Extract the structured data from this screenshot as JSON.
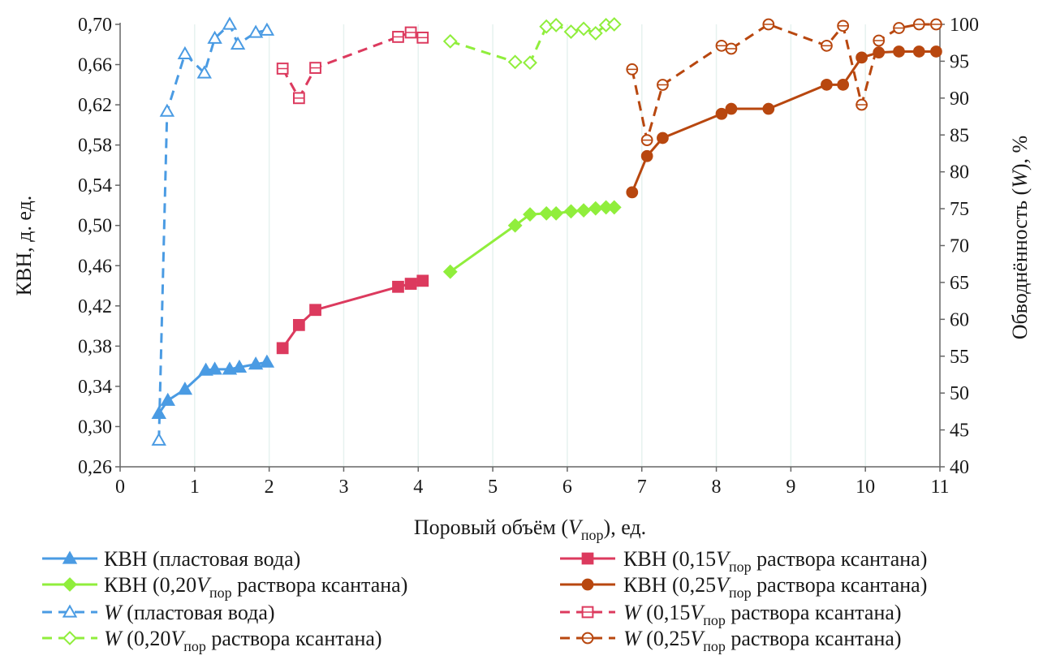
{
  "chart_data": {
    "type": "line",
    "title": "",
    "x_axis": {
      "label_parts": [
        "Поровый объём (",
        "V",
        "пор",
        "), ед."
      ],
      "range": [
        0,
        11
      ],
      "ticks": [
        "0",
        "1",
        "2",
        "3",
        "4",
        "5",
        "6",
        "7",
        "8",
        "9",
        "10",
        "11"
      ]
    },
    "y_left": {
      "label": "КВН, д. ед.",
      "range": [
        0.26,
        0.7
      ],
      "ticks": [
        "0,26",
        "0,30",
        "0,34",
        "0,38",
        "0,42",
        "0,46",
        "0,50",
        "0,54",
        "0,58",
        "0,62",
        "0,66",
        "0,70"
      ]
    },
    "y_right": {
      "label_parts": [
        "Обводнённость (",
        "W",
        "), %"
      ],
      "range": [
        40,
        100
      ],
      "ticks": [
        "40",
        "45",
        "50",
        "55",
        "60",
        "65",
        "70",
        "75",
        "80",
        "85",
        "90",
        "95",
        "100"
      ]
    },
    "grid": "vertical",
    "legend_position": "bottom",
    "colors": {
      "blue": "#4a9be3",
      "pink": "#dc3a5e",
      "green": "#90ee3c",
      "brown": "#b8470f"
    },
    "series": [
      {
        "name_parts": [
          "КВН (пластовая вода)"
        ],
        "axis": "left",
        "color": "#4a9be3",
        "dashed": false,
        "marker": "triangle",
        "filled": true,
        "points": [
          [
            0.52,
            0.313
          ],
          [
            0.64,
            0.326
          ],
          [
            0.87,
            0.337
          ],
          [
            1.15,
            0.356
          ],
          [
            1.27,
            0.357
          ],
          [
            1.47,
            0.357
          ],
          [
            1.6,
            0.359
          ],
          [
            1.82,
            0.362
          ],
          [
            1.97,
            0.364
          ]
        ]
      },
      {
        "name_parts": [
          "КВН (0,15",
          "V",
          "пор",
          "  раствора ксантана)"
        ],
        "axis": "left",
        "color": "#dc3a5e",
        "dashed": false,
        "marker": "square",
        "filled": true,
        "points": [
          [
            2.18,
            0.378
          ],
          [
            2.4,
            0.401
          ],
          [
            2.62,
            0.416
          ],
          [
            3.73,
            0.439
          ],
          [
            3.9,
            0.442
          ],
          [
            4.06,
            0.445
          ]
        ]
      },
      {
        "name_parts": [
          "КВН (0,20",
          "V",
          "пор",
          "  раствора ксантана)"
        ],
        "axis": "left",
        "color": "#90ee3c",
        "dashed": false,
        "marker": "diamond",
        "filled": true,
        "points": [
          [
            4.43,
            0.454
          ],
          [
            5.3,
            0.5
          ],
          [
            5.5,
            0.511
          ],
          [
            5.72,
            0.512
          ],
          [
            5.85,
            0.512
          ],
          [
            6.05,
            0.514
          ],
          [
            6.22,
            0.515
          ],
          [
            6.38,
            0.517
          ],
          [
            6.52,
            0.518
          ],
          [
            6.63,
            0.518
          ]
        ]
      },
      {
        "name_parts": [
          "КВН (0,25",
          "V",
          "пор",
          "  раствора ксантана)"
        ],
        "axis": "left",
        "color": "#b8470f",
        "dashed": false,
        "marker": "circle",
        "filled": true,
        "points": [
          [
            6.87,
            0.533
          ],
          [
            7.07,
            0.569
          ],
          [
            7.28,
            0.587
          ],
          [
            8.07,
            0.611
          ],
          [
            8.2,
            0.616
          ],
          [
            8.7,
            0.616
          ],
          [
            9.48,
            0.64
          ],
          [
            9.7,
            0.64
          ],
          [
            9.95,
            0.667
          ],
          [
            10.18,
            0.672
          ],
          [
            10.45,
            0.673
          ],
          [
            10.72,
            0.673
          ],
          [
            10.95,
            0.673
          ]
        ]
      },
      {
        "name_parts": [
          "W",
          " (пластовая вода)"
        ],
        "axis": "right",
        "color": "#4a9be3",
        "dashed": true,
        "marker": "triangle",
        "filled": false,
        "points": [
          [
            0.52,
            43.6
          ],
          [
            0.63,
            88.2
          ],
          [
            0.87,
            96.0
          ],
          [
            1.13,
            93.4
          ],
          [
            1.27,
            98.1
          ],
          [
            1.47,
            100.0
          ],
          [
            1.58,
            97.3
          ],
          [
            1.82,
            98.9
          ],
          [
            1.97,
            99.2
          ]
        ]
      },
      {
        "name_parts": [
          "W",
          " (0,15",
          "V",
          "пор",
          "  раствора ксантана)"
        ],
        "axis": "right",
        "color": "#dc3a5e",
        "dashed": true,
        "marker": "square",
        "filled": false,
        "points": [
          [
            2.18,
            94.0
          ],
          [
            2.4,
            90.0
          ],
          [
            2.62,
            94.1
          ],
          [
            3.73,
            98.3
          ],
          [
            3.9,
            98.9
          ],
          [
            4.06,
            98.2
          ]
        ]
      },
      {
        "name_parts": [
          "W",
          " (0,20",
          "V",
          "пор",
          "  раствора ксантана)"
        ],
        "axis": "right",
        "color": "#90ee3c",
        "dashed": true,
        "marker": "diamond",
        "filled": false,
        "points": [
          [
            4.43,
            97.7
          ],
          [
            5.3,
            94.9
          ],
          [
            5.5,
            94.8
          ],
          [
            5.72,
            99.7
          ],
          [
            5.85,
            99.9
          ],
          [
            6.05,
            99.0
          ],
          [
            6.22,
            99.4
          ],
          [
            6.38,
            98.8
          ],
          [
            6.52,
            99.9
          ],
          [
            6.63,
            100.0
          ]
        ]
      },
      {
        "name_parts": [
          "W",
          " (0,25",
          "V",
          "пор",
          "  раствора ксантана)"
        ],
        "axis": "right",
        "color": "#b8470f",
        "dashed": true,
        "marker": "circle",
        "filled": false,
        "points": [
          [
            6.87,
            93.9
          ],
          [
            7.07,
            84.3
          ],
          [
            7.28,
            91.8
          ],
          [
            8.07,
            97.1
          ],
          [
            8.2,
            96.7
          ],
          [
            8.7,
            100.0
          ],
          [
            9.48,
            97.1
          ],
          [
            9.7,
            99.8
          ],
          [
            9.95,
            89.1
          ],
          [
            10.18,
            97.8
          ],
          [
            10.45,
            99.5
          ],
          [
            10.72,
            100.0
          ],
          [
            10.95,
            100.0
          ]
        ]
      }
    ]
  }
}
